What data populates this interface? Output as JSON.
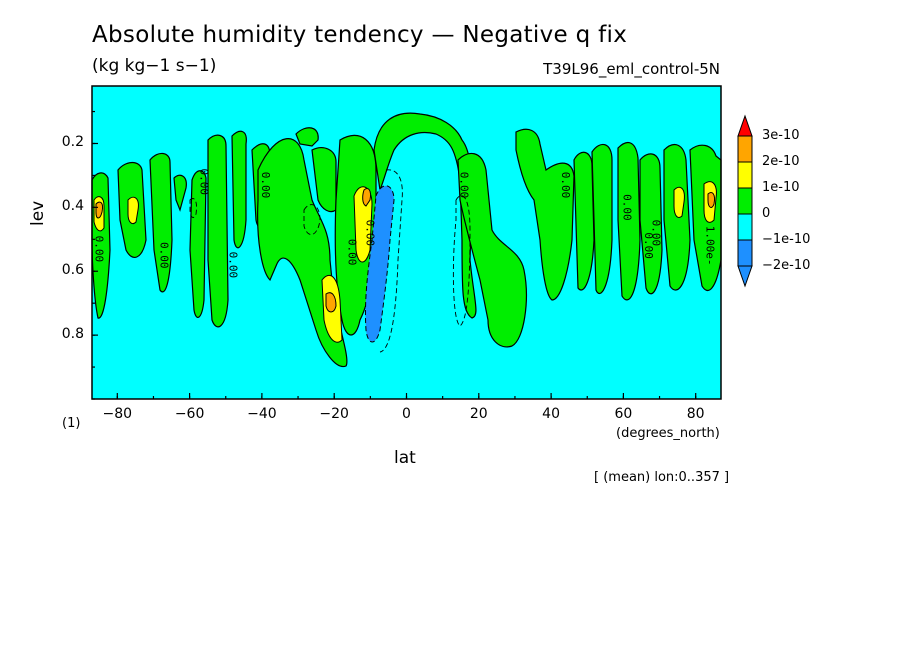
{
  "title": "Absolute humidity tendency — Negative q fix",
  "units": "(kg kg−1 s−1)",
  "run_name": "T39L96_eml_control-5N",
  "mean_note": "[ (mean) lon:0..357 ]",
  "level_note": "(1)",
  "colors": {
    "background": "#00ffff",
    "positive_1": "#00ee00",
    "positive_2": "#ffff00",
    "positive_3": "#ffa500",
    "positive_4": "#ff0000",
    "negative_1": "#00ffff",
    "negative_2": "#1e90ff"
  },
  "chart_data": {
    "type": "heatmap",
    "title": "Absolute humidity tendency — Negative q fix",
    "xlabel": "lat",
    "xunits": "(degrees_north)",
    "ylabel": "lev",
    "xlim": [
      -87,
      87
    ],
    "ylim": [
      1.0,
      0.02
    ],
    "x_ticks": [
      -80,
      -60,
      -40,
      -20,
      0,
      20,
      40,
      60,
      80
    ],
    "x_tick_labels": [
      "−80",
      "−60",
      "−40",
      "−20",
      "0",
      "20",
      "40",
      "60",
      "80"
    ],
    "y_ticks": [
      0.2,
      0.4,
      0.6,
      0.8
    ],
    "y_tick_labels": [
      "0.2",
      "0.4",
      "0.6",
      "0.8"
    ],
    "colorbar": {
      "labels": [
        "3e-10",
        "2e-10",
        "1e-10",
        "0",
        "−1e-10",
        "−2e-10"
      ],
      "levels": [
        3e-10,
        2e-10,
        1e-10,
        0,
        -1e-10,
        -2e-10
      ],
      "colors": [
        "#ff0000",
        "#ffa500",
        "#ffff00",
        "#00ee00",
        "#00ffff",
        "#1e90ff",
        "#1e90ff"
      ],
      "extend": "both"
    },
    "contour_labels": [
      "0.00",
      "0.00",
      "0.00",
      "0.00",
      "0.00",
      "0.00",
      "0.00",
      "0.00",
      "0.00",
      "0.00",
      "0.00",
      "0.00",
      "1.00e-"
    ],
    "features": {
      "positive_bands_lat": [
        -86,
        -77,
        -68,
        -57,
        -48,
        -40,
        -35,
        -12,
        15,
        38,
        55,
        70,
        84
      ],
      "peak_positive_lat": [
        -86,
        -76,
        -13,
        -22,
        77,
        85
      ],
      "peak_positive_lev": [
        0.4,
        0.4,
        0.4,
        0.7,
        0.37,
        0.37
      ],
      "negative_core_lat": -9,
      "negative_core_lev_range": [
        0.36,
        0.8
      ]
    }
  }
}
